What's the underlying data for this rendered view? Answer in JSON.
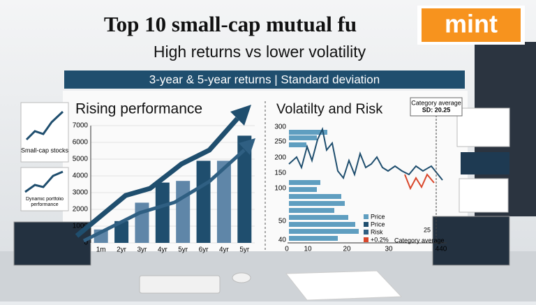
{
  "header": {
    "title": "Top 10 small-cap mutual fu",
    "logo": "mint",
    "subtitle": "High returns vs lower volatility",
    "banner": "3-year & 5-year returns | Standard deviation"
  },
  "left_chart": {
    "title": "Rising performance",
    "ylim": [
      0,
      7000
    ],
    "yticks": [
      0,
      1000,
      2000,
      3000,
      4000,
      5000,
      6000,
      7000
    ],
    "categories": [
      "1m",
      "2yr",
      "3yr",
      "4yr",
      "5yr",
      "6yr",
      "4yr",
      "5yr"
    ],
    "values": [
      800,
      1300,
      2400,
      3600,
      3700,
      4900,
      4900,
      6400
    ],
    "colors": [
      "#5f86a8",
      "#1f4e6e"
    ]
  },
  "right_chart": {
    "title": "Volatilty and Risk",
    "yticks": [
      "300",
      "250",
      "200",
      "150",
      "100",
      "50",
      "40"
    ],
    "xticks": [
      "0",
      "10",
      "20",
      "30",
      "440"
    ],
    "legend": [
      "Price",
      "Price",
      "Risk",
      "+0.2%"
    ],
    "callout": [
      "Category average",
      "SD: 20.25"
    ],
    "note_value": "25",
    "note_label": "Category average"
  },
  "side_cards": [
    {
      "label": "Small-cap stocks"
    },
    {
      "label": "Dynamic portfolio performance"
    }
  ]
}
